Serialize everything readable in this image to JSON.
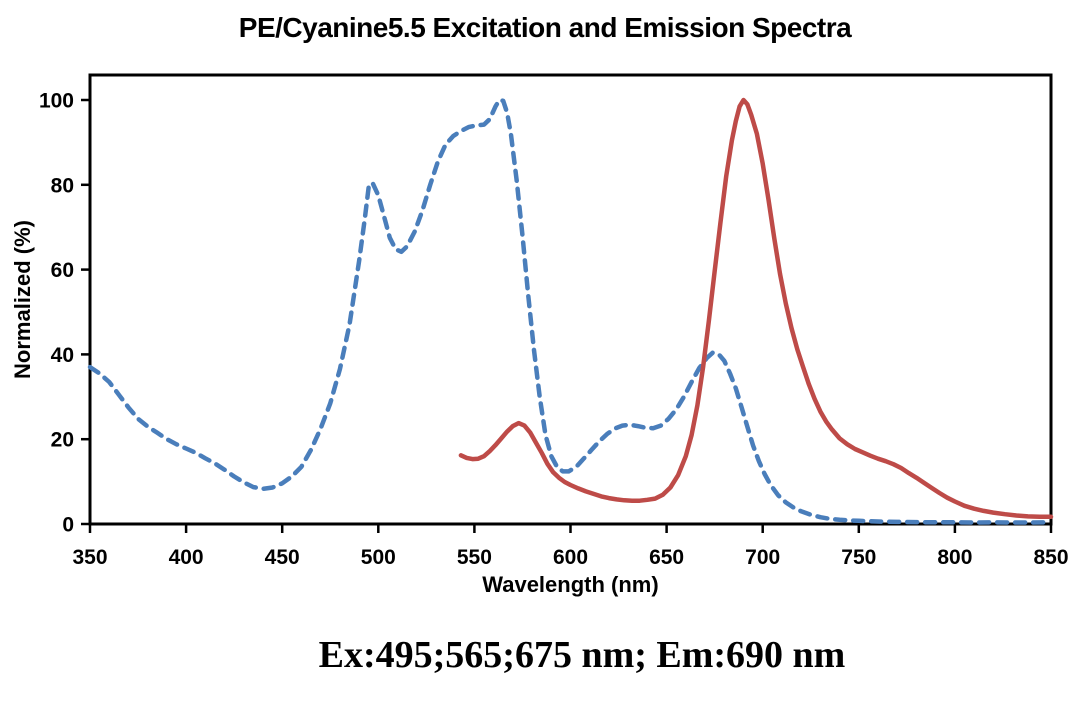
{
  "title": "PE/Cyanine5.5 Excitation and Emission Spectra",
  "caption": "Ex:495;565;675 nm; Em:690 nm",
  "chart_data": {
    "type": "line",
    "title": "PE/Cyanine5.5 Excitation and Emission Spectra",
    "xlabel": "Wavelength (nm)",
    "ylabel": "Normalized (%)",
    "xlim": [
      350,
      850
    ],
    "ylim": [
      0,
      106
    ],
    "xticks": [
      350,
      400,
      450,
      500,
      550,
      600,
      650,
      700,
      750,
      800,
      850
    ],
    "yticks": [
      0,
      20,
      40,
      60,
      80,
      100
    ],
    "grid": false,
    "legend": "none",
    "axis_color": "#000000",
    "series": [
      {
        "name": "Excitation spectrum (dashed)",
        "style": "dashed",
        "color": "#4a7ebb",
        "points": [
          [
            350,
            37
          ],
          [
            355,
            35.5
          ],
          [
            360,
            33.5
          ],
          [
            365,
            30.5
          ],
          [
            370,
            27.5
          ],
          [
            375,
            24.8
          ],
          [
            380,
            23
          ],
          [
            385,
            21.5
          ],
          [
            390,
            20
          ],
          [
            395,
            18.8
          ],
          [
            400,
            17.8
          ],
          [
            405,
            16.8
          ],
          [
            410,
            15.5
          ],
          [
            415,
            14.3
          ],
          [
            420,
            12.8
          ],
          [
            425,
            11.2
          ],
          [
            430,
            9.8
          ],
          [
            435,
            8.7
          ],
          [
            440,
            8.3
          ],
          [
            445,
            8.6
          ],
          [
            450,
            9.6
          ],
          [
            455,
            11.2
          ],
          [
            460,
            13.5
          ],
          [
            465,
            17.5
          ],
          [
            470,
            22.5
          ],
          [
            475,
            28.5
          ],
          [
            480,
            36.5
          ],
          [
            485,
            47
          ],
          [
            490,
            62
          ],
          [
            493,
            72
          ],
          [
            495,
            79.5
          ],
          [
            497,
            80.5
          ],
          [
            500,
            77.5
          ],
          [
            503,
            72.5
          ],
          [
            506,
            67.5
          ],
          [
            509,
            64.8
          ],
          [
            512,
            64.2
          ],
          [
            515,
            65.5
          ],
          [
            519,
            69
          ],
          [
            523,
            74
          ],
          [
            527,
            80
          ],
          [
            531,
            85.5
          ],
          [
            535,
            89.5
          ],
          [
            539,
            91.5
          ],
          [
            543,
            92.7
          ],
          [
            547,
            93.6
          ],
          [
            551,
            94
          ],
          [
            555,
            94.2
          ],
          [
            558,
            95.5
          ],
          [
            561,
            98.5
          ],
          [
            563,
            100
          ],
          [
            565,
            99.8
          ],
          [
            567,
            97
          ],
          [
            569,
            92
          ],
          [
            572,
            81
          ],
          [
            575,
            68
          ],
          [
            578,
            54
          ],
          [
            581,
            41
          ],
          [
            584,
            30
          ],
          [
            587,
            21
          ],
          [
            590,
            16
          ],
          [
            593,
            13.5
          ],
          [
            596,
            12.4
          ],
          [
            599,
            12.4
          ],
          [
            603,
            13.5
          ],
          [
            607,
            15.5
          ],
          [
            611,
            17.5
          ],
          [
            615,
            19.5
          ],
          [
            619,
            21.2
          ],
          [
            623,
            22.5
          ],
          [
            627,
            23.2
          ],
          [
            631,
            23.4
          ],
          [
            635,
            23.1
          ],
          [
            639,
            22.7
          ],
          [
            643,
            22.6
          ],
          [
            647,
            23.2
          ],
          [
            651,
            24.8
          ],
          [
            655,
            27
          ],
          [
            659,
            30
          ],
          [
            663,
            33.5
          ],
          [
            667,
            36.8
          ],
          [
            671,
            39.2
          ],
          [
            674,
            40.4
          ],
          [
            677,
            40.1
          ],
          [
            680,
            38.5
          ],
          [
            683,
            35.5
          ],
          [
            686,
            32
          ],
          [
            689,
            27.5
          ],
          [
            692,
            23
          ],
          [
            695,
            18.5
          ],
          [
            698,
            14.8
          ],
          [
            701,
            11.8
          ],
          [
            704,
            9.3
          ],
          [
            708,
            6.8
          ],
          [
            712,
            5.1
          ],
          [
            716,
            3.9
          ],
          [
            720,
            3
          ],
          [
            725,
            2.2
          ],
          [
            730,
            1.6
          ],
          [
            735,
            1.2
          ],
          [
            740,
            1
          ],
          [
            745,
            0.85
          ],
          [
            750,
            0.75
          ],
          [
            760,
            0.6
          ],
          [
            770,
            0.5
          ],
          [
            780,
            0.45
          ],
          [
            790,
            0.4
          ],
          [
            800,
            0.4
          ],
          [
            810,
            0.35
          ],
          [
            820,
            0.4
          ],
          [
            830,
            0.35
          ],
          [
            840,
            0.35
          ],
          [
            850,
            0.4
          ]
        ]
      },
      {
        "name": "Emission spectrum (solid)",
        "style": "solid",
        "color": "#be4b48",
        "points": [
          [
            543,
            16.2
          ],
          [
            546,
            15.6
          ],
          [
            549,
            15.3
          ],
          [
            552,
            15.4
          ],
          [
            555,
            16
          ],
          [
            558,
            17.2
          ],
          [
            561,
            18.6
          ],
          [
            564,
            20.2
          ],
          [
            567,
            21.8
          ],
          [
            570,
            23.1
          ],
          [
            573,
            23.8
          ],
          [
            576,
            23.2
          ],
          [
            579,
            21.6
          ],
          [
            582,
            19.2
          ],
          [
            585,
            16.8
          ],
          [
            588,
            14.2
          ],
          [
            591,
            12.2
          ],
          [
            594,
            10.9
          ],
          [
            597,
            9.9
          ],
          [
            600,
            9.2
          ],
          [
            604,
            8.4
          ],
          [
            608,
            7.7
          ],
          [
            612,
            7.1
          ],
          [
            616,
            6.5
          ],
          [
            620,
            6.1
          ],
          [
            624,
            5.8
          ],
          [
            628,
            5.6
          ],
          [
            632,
            5.5
          ],
          [
            636,
            5.5
          ],
          [
            640,
            5.7
          ],
          [
            644,
            6
          ],
          [
            648,
            6.9
          ],
          [
            652,
            8.6
          ],
          [
            656,
            11.5
          ],
          [
            660,
            16
          ],
          [
            663,
            21
          ],
          [
            666,
            28
          ],
          [
            669,
            37
          ],
          [
            672,
            48
          ],
          [
            675,
            59.5
          ],
          [
            678,
            71
          ],
          [
            681,
            82
          ],
          [
            684,
            90.5
          ],
          [
            686,
            95
          ],
          [
            688,
            98.5
          ],
          [
            690,
            100
          ],
          [
            692,
            99
          ],
          [
            694,
            96.5
          ],
          [
            697,
            92
          ],
          [
            700,
            85
          ],
          [
            703,
            76.5
          ],
          [
            706,
            67.5
          ],
          [
            709,
            59
          ],
          [
            712,
            52
          ],
          [
            715,
            46.2
          ],
          [
            718,
            41.2
          ],
          [
            721,
            37
          ],
          [
            724,
            33
          ],
          [
            727,
            29.5
          ],
          [
            730,
            26.5
          ],
          [
            733,
            24.2
          ],
          [
            736,
            22.3
          ],
          [
            740,
            20.2
          ],
          [
            744,
            18.8
          ],
          [
            748,
            17.7
          ],
          [
            752,
            16.9
          ],
          [
            756,
            16.1
          ],
          [
            760,
            15.4
          ],
          [
            764,
            14.8
          ],
          [
            768,
            14.1
          ],
          [
            772,
            13.2
          ],
          [
            776,
            12
          ],
          [
            780,
            10.9
          ],
          [
            784,
            9.7
          ],
          [
            788,
            8.5
          ],
          [
            792,
            7.3
          ],
          [
            796,
            6.2
          ],
          [
            800,
            5.3
          ],
          [
            805,
            4.3
          ],
          [
            810,
            3.6
          ],
          [
            815,
            3.1
          ],
          [
            820,
            2.7
          ],
          [
            826,
            2.3
          ],
          [
            832,
            2
          ],
          [
            838,
            1.8
          ],
          [
            844,
            1.7
          ],
          [
            850,
            1.7
          ]
        ]
      }
    ]
  }
}
